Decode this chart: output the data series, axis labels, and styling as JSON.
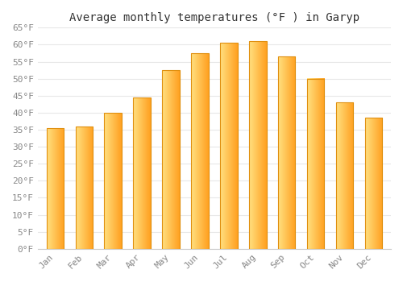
{
  "title": "Average monthly temperatures (°F ) in Garyp",
  "months": [
    "Jan",
    "Feb",
    "Mar",
    "Apr",
    "May",
    "Jun",
    "Jul",
    "Aug",
    "Sep",
    "Oct",
    "Nov",
    "Dec"
  ],
  "values": [
    35.5,
    36.0,
    40.0,
    44.5,
    52.5,
    57.5,
    60.5,
    61.0,
    56.5,
    50.0,
    43.0,
    38.5
  ],
  "bar_color_left": "#FFE080",
  "bar_color_right": "#FFA020",
  "bar_color_edge": "#E09010",
  "ylim": [
    0,
    65
  ],
  "ytick_step": 5,
  "background_color": "#FFFFFF",
  "grid_color": "#E8E8E8",
  "title_fontsize": 10,
  "tick_fontsize": 8,
  "font_family": "monospace"
}
